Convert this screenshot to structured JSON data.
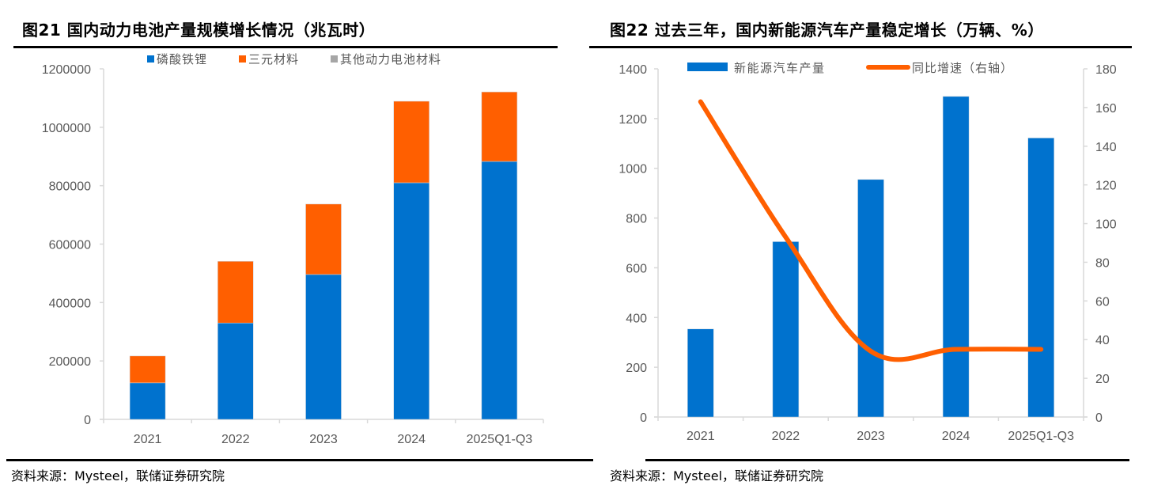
{
  "figures": [
    {
      "title": "图21 国内动力电池产量规模增长情况（兆瓦时）",
      "source": "资料来源：Mysteel，联储证券研究院"
    },
    {
      "title": "图22 过去三年，国内新能源汽车产量稳定增长（万辆、%）",
      "source": "资料来源：Mysteel，联储证券研究院"
    }
  ],
  "colors": {
    "blue": "#0072CE",
    "orange": "#FF5F00",
    "gray": "#A6A6A6",
    "axis": "#D9D9D9",
    "tick_text": "#595959"
  },
  "chart_data": [
    {
      "type": "bar",
      "stacked": true,
      "title": "图21 国内动力电池产量规模增长情况（兆瓦时）",
      "categories": [
        "2021",
        "2022",
        "2023",
        "2024",
        "2025Q1-Q3"
      ],
      "series": [
        {
          "name": "磷酸铁锂",
          "color": "#0072CE",
          "values": [
            125000,
            330000,
            496000,
            810000,
            883000
          ]
        },
        {
          "name": "三元材料",
          "color": "#FF5F00",
          "values": [
            92000,
            211000,
            241000,
            279000,
            238000
          ]
        },
        {
          "name": "其他动力电池材料",
          "color": "#A6A6A6",
          "values": [
            0,
            0,
            0,
            0,
            0
          ]
        }
      ],
      "ylim": [
        0,
        1200000
      ],
      "yticks": [
        "0",
        "200000",
        "400000",
        "600000",
        "800000",
        "1000000",
        "1200000"
      ],
      "xlabel": "",
      "ylabel": "",
      "legend": "top",
      "grid": false
    },
    {
      "type": "bar+line",
      "title": "图22 过去三年，国内新能源汽车产量稳定增长（万辆、%）",
      "categories": [
        "2021",
        "2022",
        "2023",
        "2024",
        "2025Q1-Q3"
      ],
      "series": [
        {
          "name": "新能源汽车产量",
          "type": "bar",
          "axis": "left",
          "color": "#0072CE",
          "values": [
            354,
            705,
            955,
            1289,
            1122
          ]
        },
        {
          "name": "同比增速（右轴）",
          "type": "line",
          "axis": "right",
          "color": "#FF5F00",
          "values": [
            163,
            93,
            34,
            35,
            35
          ]
        }
      ],
      "ylim": [
        0,
        1400
      ],
      "yticks": [
        "0",
        "200",
        "400",
        "600",
        "800",
        "1000",
        "1200",
        "1400"
      ],
      "y2lim": [
        0,
        180
      ],
      "y2ticks": [
        "0",
        "20",
        "40",
        "60",
        "80",
        "100",
        "120",
        "140",
        "160",
        "180"
      ],
      "xlabel": "",
      "ylabel": "",
      "legend": "top",
      "grid": false
    }
  ]
}
